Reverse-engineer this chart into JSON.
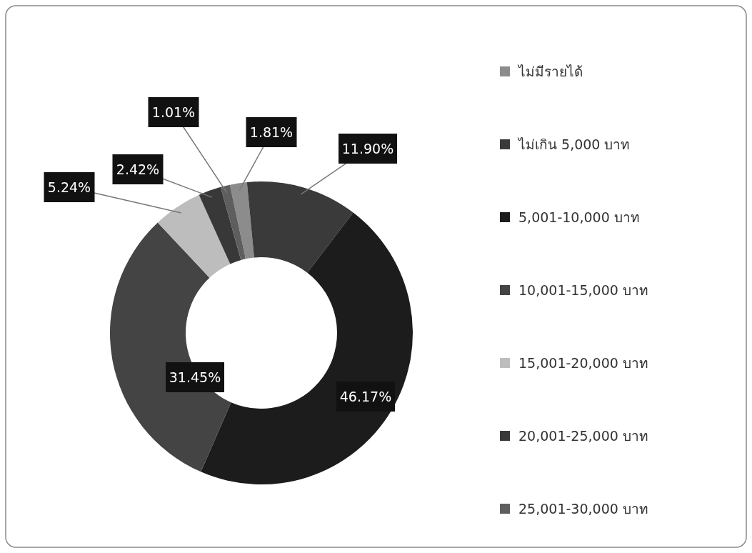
{
  "chart_data": {
    "type": "donut",
    "categories": [
      "ไม่มีรายได้",
      "ไม่เกิน 5,000 บาท",
      "5,001-10,000 บาท",
      "10,001-15,000 บาท",
      "15,001-20,000 บาท",
      "20,001-25,000 บาท",
      "25,001-30,000 บาท"
    ],
    "values": [
      1.81,
      11.9,
      46.17,
      31.45,
      5.24,
      2.42,
      1.01
    ],
    "value_labels": [
      "1.81%",
      "11.90%",
      "46.17%",
      "31.45%",
      "5.24%",
      "2.42%",
      "1.01%"
    ],
    "colors": [
      "#8c8c8c",
      "#3a3a3a",
      "#1c1c1c",
      "#444444",
      "#bdbdbd",
      "#383838",
      "#5e5e5e"
    ],
    "legend": "right"
  }
}
